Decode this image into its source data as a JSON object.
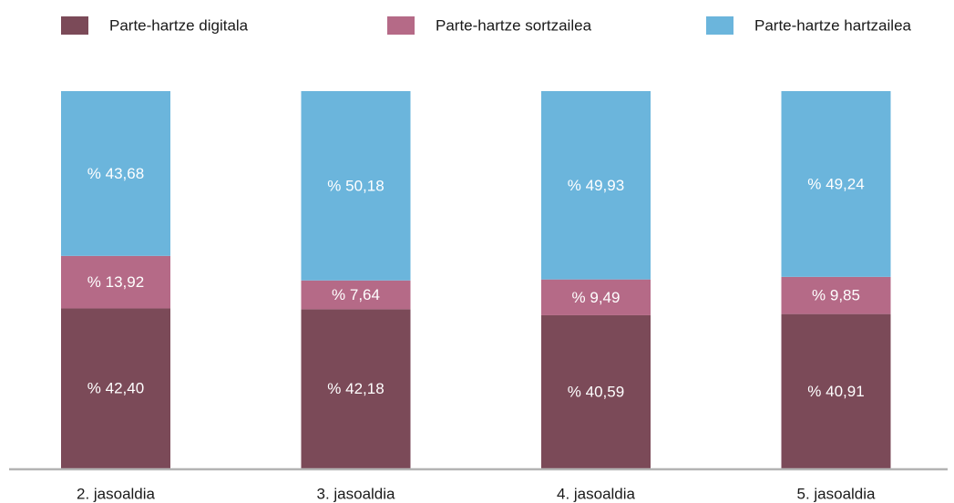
{
  "chart_data": {
    "type": "bar",
    "stacked": true,
    "categories": [
      "2. jasoaldia",
      "3. jasoaldia",
      "4. jasoaldia",
      "5. jasoaldia"
    ],
    "series": [
      {
        "name": "Parte-hartze digitala",
        "color": "#7b4a58",
        "values": [
          42.4,
          42.18,
          40.59,
          40.91
        ],
        "value_labels": [
          "% 42,40",
          "% 42,18",
          "% 40,59",
          "% 40,91"
        ]
      },
      {
        "name": "Parte-hartze sortzailea",
        "color": "#b56a87",
        "values": [
          13.92,
          7.64,
          9.49,
          9.85
        ],
        "value_labels": [
          "% 13,92",
          "% 7,64",
          "% 9,49",
          "% 9,85"
        ]
      },
      {
        "name": "Parte-hartze hartzailea",
        "color": "#6bb5dc",
        "values": [
          43.68,
          50.18,
          49.93,
          49.24
        ],
        "value_labels": [
          "% 43,68",
          "% 50,18",
          "% 49,93",
          "% 49,24"
        ]
      }
    ],
    "ylim": [
      0,
      100
    ],
    "legend": "top"
  }
}
